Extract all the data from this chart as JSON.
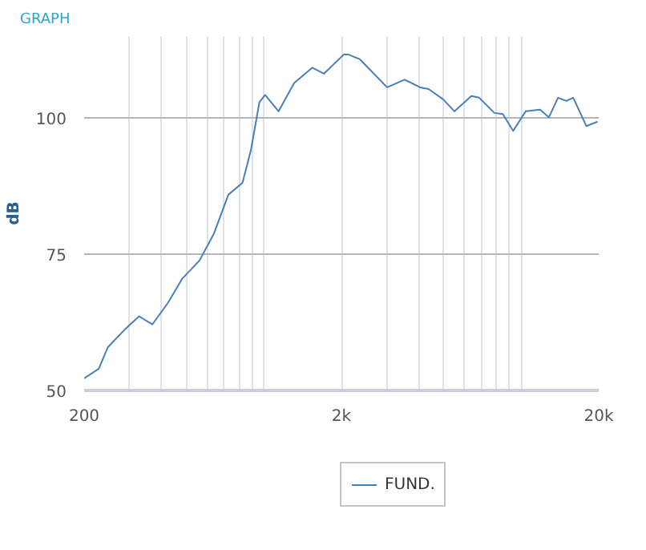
{
  "chart_data": {
    "type": "line",
    "title": "GRAPH",
    "ylabel": "dB",
    "log": "x",
    "grid": true,
    "legend": "bottom",
    "xlim": [
      200,
      20000
    ],
    "ylim": [
      50,
      115
    ],
    "xticks": [
      200,
      {
        "value": 300,
        "label": null
      },
      {
        "value": 400,
        "label": null
      },
      {
        "value": 500,
        "label": null
      },
      {
        "value": 600,
        "label": null
      },
      {
        "value": 700,
        "label": null
      },
      {
        "value": 800,
        "label": null
      },
      {
        "value": 900,
        "label": null
      },
      {
        "value": 1000,
        "label": null
      },
      {
        "value": 2000,
        "label": "2k"
      },
      {
        "value": 3000,
        "label": null
      },
      {
        "value": 4000,
        "label": null
      },
      {
        "value": 5000,
        "label": null
      },
      {
        "value": 6000,
        "label": null
      },
      {
        "value": 7000,
        "label": null
      },
      {
        "value": 8000,
        "label": null
      },
      {
        "value": 9000,
        "label": null
      },
      {
        "value": 10000,
        "label": null
      },
      {
        "value": 20000,
        "label": "20k"
      }
    ],
    "yticks": [
      50,
      75,
      100
    ],
    "series": [
      {
        "name": "FUND.",
        "color": "#4a7fb5",
        "x": [
          200,
          228,
          247,
          288,
          327,
          368,
          424,
          481,
          561,
          638,
          727,
          825,
          890,
          960,
          1010,
          1140,
          1310,
          1540,
          1710,
          2040,
          2130,
          2350,
          3010,
          3520,
          4040,
          4360,
          4970,
          5500,
          6400,
          6860,
          7860,
          8480,
          9300,
          10400,
          11830,
          12800,
          13900,
          14970,
          15920,
          17900,
          19800
        ],
        "values": [
          52.2,
          54.0,
          57.9,
          61.2,
          63.6,
          62.1,
          66.1,
          70.5,
          73.8,
          78.7,
          85.9,
          88.1,
          94.1,
          102.9,
          104.2,
          101.2,
          106.4,
          109.2,
          108.1,
          111.6,
          111.6,
          110.8,
          105.6,
          107.0,
          105.6,
          105.3,
          103.4,
          101.2,
          104.0,
          103.7,
          100.9,
          100.7,
          97.6,
          101.2,
          101.5,
          100.1,
          103.7,
          103.1,
          103.7,
          98.5,
          99.3
        ]
      }
    ]
  }
}
